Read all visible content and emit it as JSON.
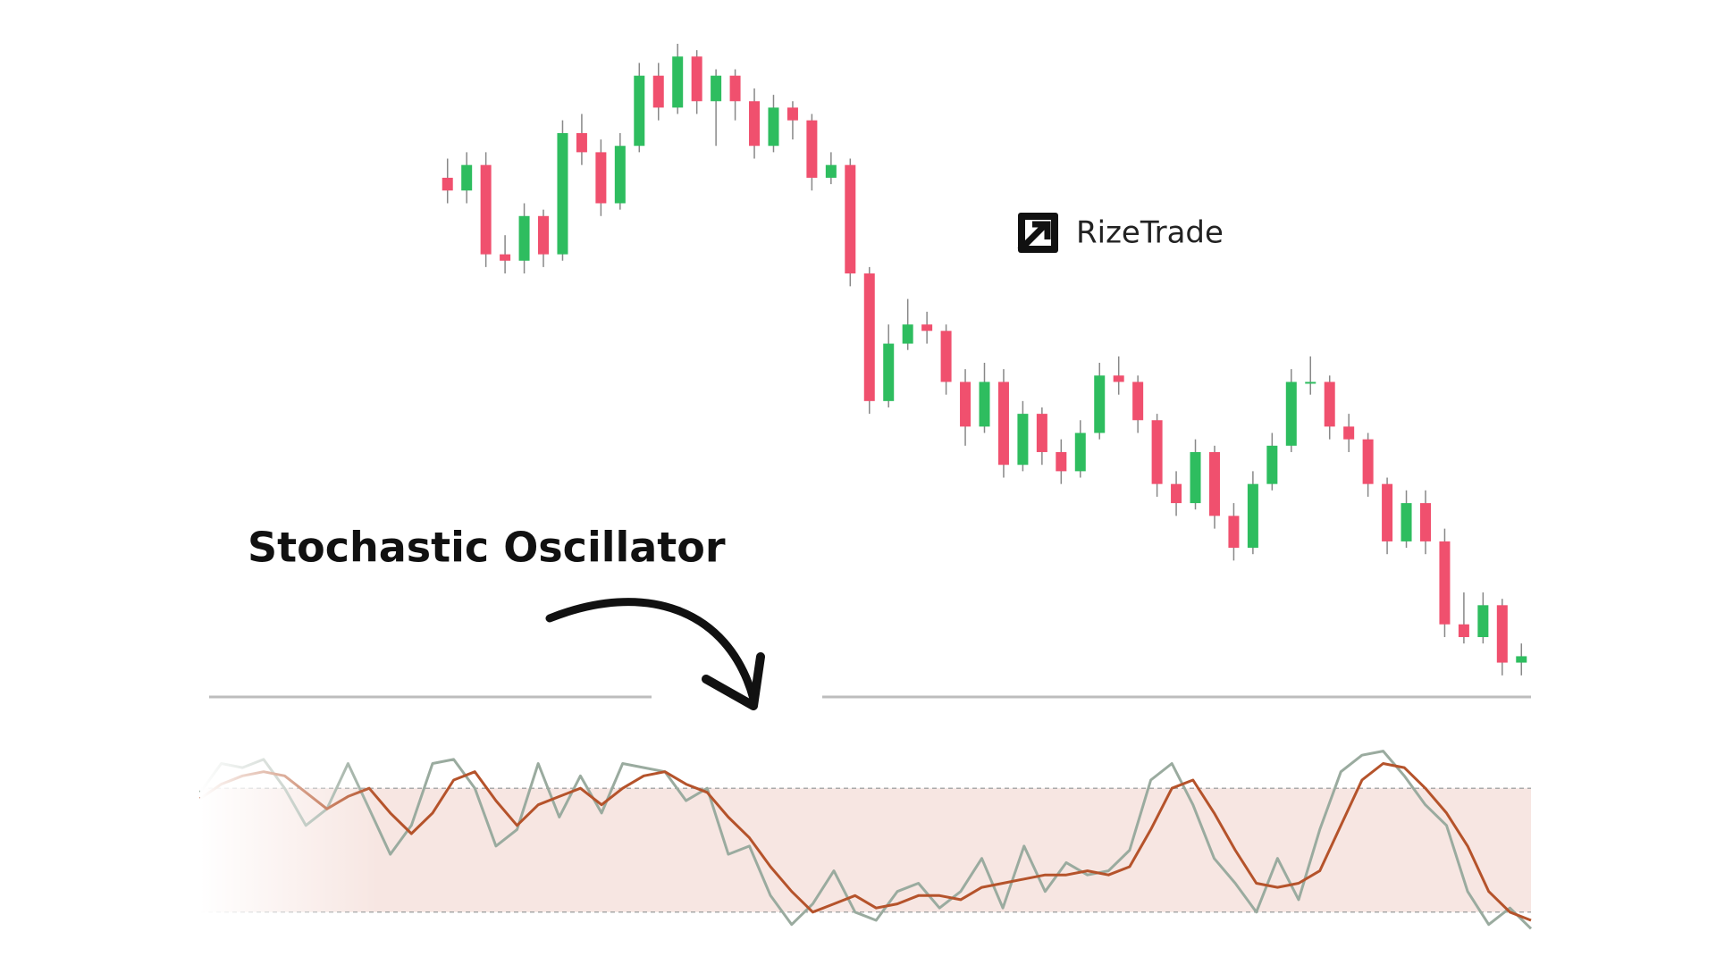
{
  "chart_data": [
    {
      "type": "candlestick",
      "watermark": "RizeTrade",
      "ylim": [
        0,
        100
      ],
      "up_color": "#2ebd5f",
      "down_color": "#f0506e",
      "ohlc": [
        [
          79,
          82,
          75,
          77
        ],
        [
          77,
          83,
          75,
          81
        ],
        [
          81,
          83,
          65,
          67
        ],
        [
          67,
          70,
          64,
          66
        ],
        [
          66,
          75,
          64,
          73
        ],
        [
          73,
          74,
          65,
          67
        ],
        [
          67,
          88,
          66,
          86
        ],
        [
          86,
          89,
          81,
          83
        ],
        [
          83,
          85,
          73,
          75
        ],
        [
          75,
          86,
          74,
          84
        ],
        [
          84,
          97,
          83,
          95
        ],
        [
          95,
          97,
          88,
          90
        ],
        [
          90,
          100,
          89,
          98
        ],
        [
          98,
          99,
          89,
          91
        ],
        [
          91,
          96,
          84,
          95
        ],
        [
          95,
          96,
          88,
          91
        ],
        [
          91,
          93,
          82,
          84
        ],
        [
          84,
          92,
          83,
          90
        ],
        [
          90,
          91,
          85,
          88
        ],
        [
          88,
          89,
          77,
          79
        ],
        [
          79,
          83,
          78,
          81
        ],
        [
          81,
          82,
          62,
          64
        ],
        [
          64,
          65,
          42,
          44
        ],
        [
          44,
          56,
          43,
          53
        ],
        [
          53,
          60,
          52,
          56
        ],
        [
          56,
          58,
          53,
          55
        ],
        [
          55,
          56,
          45,
          47
        ],
        [
          47,
          49,
          37,
          40
        ],
        [
          40,
          50,
          39,
          47
        ],
        [
          47,
          49,
          32,
          34
        ],
        [
          34,
          44,
          33,
          42
        ],
        [
          42,
          43,
          34,
          36
        ],
        [
          36,
          38,
          31,
          33
        ],
        [
          33,
          41,
          32,
          39
        ],
        [
          39,
          50,
          38,
          48
        ],
        [
          48,
          51,
          45,
          47
        ],
        [
          47,
          48,
          39,
          41
        ],
        [
          41,
          42,
          29,
          31
        ],
        [
          31,
          33,
          26,
          28
        ],
        [
          28,
          38,
          27,
          36
        ],
        [
          36,
          37,
          24,
          26
        ],
        [
          26,
          28,
          19,
          21
        ],
        [
          21,
          33,
          20,
          31
        ],
        [
          31,
          39,
          30,
          37
        ],
        [
          37,
          49,
          36,
          47
        ],
        [
          47,
          51,
          45,
          47
        ],
        [
          47,
          48,
          38,
          40
        ],
        [
          40,
          42,
          36,
          38
        ],
        [
          38,
          39,
          29,
          31
        ],
        [
          31,
          32,
          20,
          22
        ],
        [
          22,
          30,
          21,
          28
        ],
        [
          28,
          30,
          20,
          22
        ],
        [
          22,
          24,
          7,
          9
        ],
        [
          9,
          14,
          6,
          7
        ],
        [
          7,
          14,
          6,
          12
        ],
        [
          12,
          13,
          1,
          3
        ],
        [
          3,
          6,
          1,
          4
        ]
      ]
    },
    {
      "type": "line",
      "title": "Stochastic Oscillator",
      "ylim": [
        0,
        100
      ],
      "bands": [
        20,
        80
      ],
      "band_color": "#f7e6e2",
      "series": [
        {
          "color": "#9aab9f",
          "values": [
            78,
            92,
            90,
            94,
            80,
            62,
            70,
            92,
            70,
            48,
            62,
            92,
            94,
            80,
            52,
            60,
            92,
            66,
            86,
            68,
            92,
            90,
            88,
            74,
            80,
            48,
            52,
            28,
            14,
            24,
            40,
            20,
            16,
            30,
            34,
            22,
            30,
            46,
            22,
            52,
            30,
            44,
            38,
            40,
            50,
            84,
            92,
            72,
            46,
            34,
            20,
            46,
            26,
            60,
            88,
            96,
            98,
            86,
            72,
            62,
            30,
            14,
            22,
            12
          ]
        },
        {
          "color": "#b5532b",
          "values": [
            75,
            82,
            86,
            88,
            86,
            78,
            70,
            76,
            80,
            68,
            58,
            68,
            84,
            88,
            74,
            62,
            72,
            76,
            80,
            72,
            80,
            86,
            88,
            82,
            78,
            66,
            56,
            42,
            30,
            20,
            24,
            28,
            22,
            24,
            28,
            28,
            26,
            32,
            34,
            36,
            38,
            38,
            40,
            38,
            42,
            60,
            80,
            84,
            68,
            50,
            34,
            32,
            34,
            40,
            62,
            84,
            92,
            90,
            80,
            68,
            52,
            30,
            20,
            16
          ]
        }
      ]
    }
  ]
}
